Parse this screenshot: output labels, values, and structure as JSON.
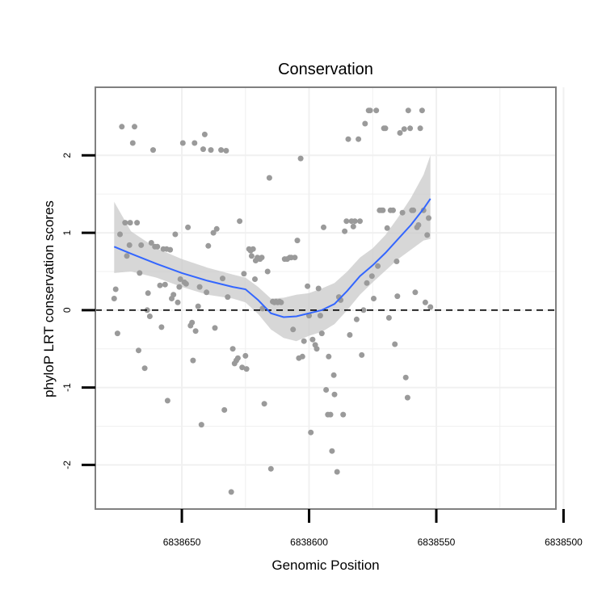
{
  "chart_data": {
    "type": "scatter",
    "title": "Conservation",
    "xlabel": "Genomic Position",
    "ylabel": "phyloP LRT conservation scores",
    "x_reversed": true,
    "xlim": [
      6838684,
      6838503
    ],
    "ylim": [
      -2.57,
      2.88
    ],
    "x_ticks": [
      6838650,
      6838600,
      6838550,
      6838500
    ],
    "x_tick_labels": [
      "6838650",
      "6838600",
      "6838550",
      "6838500"
    ],
    "y_ticks": [
      -2,
      -1,
      0,
      1,
      2
    ],
    "y_tick_labels": [
      "-2",
      "-1",
      "0",
      "1",
      "2"
    ],
    "grid": true,
    "legend": "none",
    "reference_line": {
      "y": 0,
      "style": "dashed"
    },
    "colors": {
      "points": "#9a9a9a",
      "smooth_line": "#3366ff",
      "confidence_band": "#c8c8c8",
      "panel_border": "#808080",
      "grid": "#f0f0f0"
    },
    "series": [
      {
        "points": [
          {
            "x": 6838676.6,
            "y": 0.15
          },
          {
            "x": 6838676.0,
            "y": 0.27
          },
          {
            "x": 6838675.3,
            "y": -0.3
          },
          {
            "x": 6838674.3,
            "y": 0.98
          },
          {
            "x": 6838673.6,
            "y": 2.37
          },
          {
            "x": 6838672.3,
            "y": 1.13
          },
          {
            "x": 6838671.6,
            "y": 0.7
          },
          {
            "x": 6838670.6,
            "y": 0.84
          },
          {
            "x": 6838670.3,
            "y": 1.13
          },
          {
            "x": 6838669.3,
            "y": 2.16
          },
          {
            "x": 6838668.6,
            "y": 2.37
          },
          {
            "x": 6838667.6,
            "y": 1.13
          },
          {
            "x": 6838667.0,
            "y": -0.52
          },
          {
            "x": 6838666.6,
            "y": 0.48
          },
          {
            "x": 6838666.0,
            "y": 0.84
          },
          {
            "x": 6838664.6,
            "y": -0.75
          },
          {
            "x": 6838663.6,
            "y": 0.0
          },
          {
            "x": 6838663.3,
            "y": 0.22
          },
          {
            "x": 6838662.6,
            "y": -0.08
          },
          {
            "x": 6838662.0,
            "y": 0.87
          },
          {
            "x": 6838661.3,
            "y": 2.07
          },
          {
            "x": 6838660.6,
            "y": 0.82
          },
          {
            "x": 6838659.6,
            "y": 0.82
          },
          {
            "x": 6838658.6,
            "y": 0.32
          },
          {
            "x": 6838658.0,
            "y": -0.22
          },
          {
            "x": 6838657.3,
            "y": 0.79
          },
          {
            "x": 6838656.6,
            "y": 0.33
          },
          {
            "x": 6838656.0,
            "y": 0.79
          },
          {
            "x": 6838655.6,
            "y": -1.17
          },
          {
            "x": 6838654.6,
            "y": 0.78
          },
          {
            "x": 6838654.0,
            "y": 0.15
          },
          {
            "x": 6838653.3,
            "y": 0.2
          },
          {
            "x": 6838652.6,
            "y": 0.98
          },
          {
            "x": 6838651.6,
            "y": 0.1
          },
          {
            "x": 6838651.0,
            "y": 0.3
          },
          {
            "x": 6838650.6,
            "y": 0.4
          },
          {
            "x": 6838649.6,
            "y": 2.16
          },
          {
            "x": 6838649.0,
            "y": 0.36
          },
          {
            "x": 6838648.3,
            "y": 0.34
          },
          {
            "x": 6838647.6,
            "y": 1.07
          },
          {
            "x": 6838646.6,
            "y": -0.2
          },
          {
            "x": 6838646.0,
            "y": -0.16
          },
          {
            "x": 6838645.6,
            "y": -0.65
          },
          {
            "x": 6838645.0,
            "y": 2.16
          },
          {
            "x": 6838644.6,
            "y": -0.27
          },
          {
            "x": 6838643.6,
            "y": 0.05
          },
          {
            "x": 6838643.0,
            "y": 0.3
          },
          {
            "x": 6838642.3,
            "y": -1.48
          },
          {
            "x": 6838641.6,
            "y": 2.08
          },
          {
            "x": 6838641.0,
            "y": 2.27
          },
          {
            "x": 6838640.3,
            "y": 0.23
          },
          {
            "x": 6838639.6,
            "y": 0.83
          },
          {
            "x": 6838638.6,
            "y": 2.07
          },
          {
            "x": 6838637.6,
            "y": 1.0
          },
          {
            "x": 6838637.0,
            "y": -0.23
          },
          {
            "x": 6838636.3,
            "y": 1.05
          },
          {
            "x": 6838634.6,
            "y": 2.07
          },
          {
            "x": 6838634.0,
            "y": 0.41
          },
          {
            "x": 6838633.3,
            "y": -1.29
          },
          {
            "x": 6838632.6,
            "y": 2.06
          },
          {
            "x": 6838632.0,
            "y": 0.17
          },
          {
            "x": 6838630.6,
            "y": -2.35
          },
          {
            "x": 6838630.0,
            "y": -0.5
          },
          {
            "x": 6838629.3,
            "y": -0.69
          },
          {
            "x": 6838628.6,
            "y": -0.65
          },
          {
            "x": 6838628.0,
            "y": -0.62
          },
          {
            "x": 6838627.3,
            "y": 1.15
          },
          {
            "x": 6838626.3,
            "y": -0.74
          },
          {
            "x": 6838625.6,
            "y": 0.47
          },
          {
            "x": 6838625.0,
            "y": -0.59
          },
          {
            "x": 6838624.6,
            "y": -0.76
          },
          {
            "x": 6838623.6,
            "y": 0.79
          },
          {
            "x": 6838623.0,
            "y": 0.77
          },
          {
            "x": 6838622.6,
            "y": 0.7
          },
          {
            "x": 6838622.0,
            "y": 0.79
          },
          {
            "x": 6838621.3,
            "y": 0.4
          },
          {
            "x": 6838621.0,
            "y": 0.64
          },
          {
            "x": 6838620.3,
            "y": 0.68
          },
          {
            "x": 6838619.3,
            "y": 0.66
          },
          {
            "x": 6838618.6,
            "y": 0.68
          },
          {
            "x": 6838618.3,
            "y": 0.02
          },
          {
            "x": 6838617.6,
            "y": -1.21
          },
          {
            "x": 6838616.3,
            "y": 0.5
          },
          {
            "x": 6838615.6,
            "y": 1.71
          },
          {
            "x": 6838615.0,
            "y": -2.05
          },
          {
            "x": 6838614.3,
            "y": 0.11
          },
          {
            "x": 6838613.6,
            "y": 0.1
          },
          {
            "x": 6838613.0,
            "y": 0.11
          },
          {
            "x": 6838612.3,
            "y": 0.1
          },
          {
            "x": 6838611.6,
            "y": 0.11
          },
          {
            "x": 6838611.0,
            "y": 0.1
          },
          {
            "x": 6838609.6,
            "y": 0.66
          },
          {
            "x": 6838608.6,
            "y": 0.66
          },
          {
            "x": 6838607.6,
            "y": 0.68
          },
          {
            "x": 6838607.0,
            "y": 0.68
          },
          {
            "x": 6838606.3,
            "y": -0.25
          },
          {
            "x": 6838605.6,
            "y": 0.68
          },
          {
            "x": 6838604.6,
            "y": 0.9
          },
          {
            "x": 6838604.0,
            "y": -0.62
          },
          {
            "x": 6838603.3,
            "y": 1.96
          },
          {
            "x": 6838602.6,
            "y": -0.6
          },
          {
            "x": 6838602.0,
            "y": -0.4
          },
          {
            "x": 6838600.6,
            "y": 0.31
          },
          {
            "x": 6838600.0,
            "y": -0.07
          },
          {
            "x": 6838599.3,
            "y": -1.58
          },
          {
            "x": 6838598.6,
            "y": -0.38
          },
          {
            "x": 6838597.6,
            "y": -0.45
          },
          {
            "x": 6838597.0,
            "y": -0.5
          },
          {
            "x": 6838596.3,
            "y": 0.28
          },
          {
            "x": 6838595.6,
            "y": -0.07
          },
          {
            "x": 6838595.0,
            "y": -0.3
          },
          {
            "x": 6838594.3,
            "y": 1.07
          },
          {
            "x": 6838593.3,
            "y": -1.03
          },
          {
            "x": 6838592.6,
            "y": -1.35
          },
          {
            "x": 6838592.3,
            "y": -0.6
          },
          {
            "x": 6838591.6,
            "y": -1.35
          },
          {
            "x": 6838591.0,
            "y": -1.82
          },
          {
            "x": 6838590.3,
            "y": -0.84
          },
          {
            "x": 6838590.0,
            "y": -1.09
          },
          {
            "x": 6838589.0,
            "y": -2.09
          },
          {
            "x": 6838588.3,
            "y": 0.17
          },
          {
            "x": 6838587.6,
            "y": 0.13
          },
          {
            "x": 6838586.6,
            "y": -1.35
          },
          {
            "x": 6838586.0,
            "y": 1.02
          },
          {
            "x": 6838585.3,
            "y": 1.15
          },
          {
            "x": 6838584.6,
            "y": 2.21
          },
          {
            "x": 6838584.0,
            "y": -0.32
          },
          {
            "x": 6838583.3,
            "y": 1.15
          },
          {
            "x": 6838582.6,
            "y": 1.08
          },
          {
            "x": 6838582.0,
            "y": 1.15
          },
          {
            "x": 6838581.3,
            "y": -0.12
          },
          {
            "x": 6838580.6,
            "y": 2.21
          },
          {
            "x": 6838580.0,
            "y": 1.15
          },
          {
            "x": 6838579.3,
            "y": -0.58
          },
          {
            "x": 6838578.6,
            "y": 0.0
          },
          {
            "x": 6838578.0,
            "y": 2.41
          },
          {
            "x": 6838577.3,
            "y": 0.35
          },
          {
            "x": 6838576.6,
            "y": 2.58
          },
          {
            "x": 6838576.0,
            "y": 2.58
          },
          {
            "x": 6838575.3,
            "y": 0.44
          },
          {
            "x": 6838574.6,
            "y": 0.15
          },
          {
            "x": 6838573.6,
            "y": 2.58
          },
          {
            "x": 6838573.0,
            "y": 0.57
          },
          {
            "x": 6838572.3,
            "y": 1.29
          },
          {
            "x": 6838571.6,
            "y": 1.29
          },
          {
            "x": 6838571.0,
            "y": 1.29
          },
          {
            "x": 6838570.6,
            "y": 2.35
          },
          {
            "x": 6838570.0,
            "y": 2.35
          },
          {
            "x": 6838569.3,
            "y": 1.06
          },
          {
            "x": 6838568.6,
            "y": -0.1
          },
          {
            "x": 6838568.0,
            "y": 1.29
          },
          {
            "x": 6838567.0,
            "y": 1.29
          },
          {
            "x": 6838566.3,
            "y": -0.44
          },
          {
            "x": 6838565.6,
            "y": 0.63
          },
          {
            "x": 6838565.3,
            "y": 0.18
          },
          {
            "x": 6838564.3,
            "y": 2.29
          },
          {
            "x": 6838563.3,
            "y": 1.26
          },
          {
            "x": 6838562.6,
            "y": 2.34
          },
          {
            "x": 6838562.0,
            "y": -0.87
          },
          {
            "x": 6838561.3,
            "y": -1.13
          },
          {
            "x": 6838561.0,
            "y": 2.58
          },
          {
            "x": 6838560.3,
            "y": 2.35
          },
          {
            "x": 6838559.6,
            "y": 1.29
          },
          {
            "x": 6838559.0,
            "y": 1.29
          },
          {
            "x": 6838558.3,
            "y": 0.23
          },
          {
            "x": 6838557.6,
            "y": 1.07
          },
          {
            "x": 6838557.0,
            "y": 1.1
          },
          {
            "x": 6838556.3,
            "y": 2.35
          },
          {
            "x": 6838555.6,
            "y": 2.58
          },
          {
            "x": 6838555.0,
            "y": 1.29
          },
          {
            "x": 6838554.3,
            "y": 0.1
          },
          {
            "x": 6838553.6,
            "y": 0.97
          },
          {
            "x": 6838553.0,
            "y": 1.19
          },
          {
            "x": 6838552.3,
            "y": 0.04
          }
        ]
      }
    ],
    "smooth": {
      "method": "loess",
      "x": [
        6838676.6,
        6838670,
        6838660,
        6838650,
        6838640,
        6838630,
        6838625,
        6838620,
        6838615,
        6838610,
        6838605,
        6838600,
        6838595,
        6838590,
        6838585,
        6838580,
        6838575,
        6838570,
        6838565,
        6838560,
        6838555,
        6838552.3
      ],
      "y": [
        0.82,
        0.73,
        0.6,
        0.48,
        0.38,
        0.3,
        0.27,
        0.13,
        -0.04,
        -0.09,
        -0.08,
        -0.04,
        0.0,
        0.08,
        0.25,
        0.44,
        0.58,
        0.74,
        0.92,
        1.1,
        1.31,
        1.44
      ],
      "ymin": [
        0.48,
        0.5,
        0.42,
        0.3,
        0.2,
        0.15,
        0.1,
        -0.05,
        -0.25,
        -0.36,
        -0.4,
        -0.33,
        -0.28,
        -0.18,
        0.0,
        0.2,
        0.36,
        0.51,
        0.66,
        0.78,
        0.9,
        0.92
      ],
      "ymax": [
        1.4,
        1.02,
        0.8,
        0.66,
        0.55,
        0.46,
        0.42,
        0.3,
        0.15,
        0.16,
        0.2,
        0.22,
        0.28,
        0.35,
        0.5,
        0.68,
        0.8,
        0.97,
        1.2,
        1.45,
        1.75,
        2.0
      ]
    }
  }
}
